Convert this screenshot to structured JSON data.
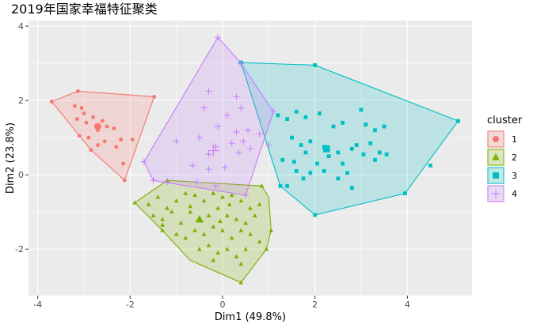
{
  "chart_data": {
    "type": "scatter",
    "title": "2019年国家幸福特征聚类",
    "xlabel": "Dim1 (49.8%)",
    "ylabel": "Dim2 (23.8%)",
    "xlim": [
      -4.2,
      5.4
    ],
    "ylim": [
      -3.25,
      4.15
    ],
    "xticks": [
      -4,
      -2,
      0,
      2,
      4
    ],
    "yticks": [
      -2,
      0,
      2,
      4
    ],
    "grid": true,
    "legend_title": "cluster",
    "legend_position": "right",
    "series": [
      {
        "name": "1",
        "color": "#F8766D",
        "marker": "circle",
        "centroid": [
          -2.7,
          1.3
        ],
        "hull": [
          [
            -3.7,
            1.97
          ],
          [
            -3.13,
            2.25
          ],
          [
            -1.48,
            2.1
          ],
          [
            -2.12,
            -0.15
          ],
          [
            -2.85,
            0.67
          ]
        ],
        "points": [
          [
            -3.7,
            1.97
          ],
          [
            -3.13,
            2.25
          ],
          [
            -1.48,
            2.1
          ],
          [
            -2.12,
            -0.15
          ],
          [
            -2.85,
            0.67
          ],
          [
            -3.2,
            1.85
          ],
          [
            -3.05,
            1.8
          ],
          [
            -3.0,
            1.65
          ],
          [
            -3.15,
            1.5
          ],
          [
            -2.95,
            1.4
          ],
          [
            -2.8,
            1.55
          ],
          [
            -2.7,
            1.2
          ],
          [
            -2.6,
            1.45
          ],
          [
            -2.5,
            1.3
          ],
          [
            -2.9,
            1.0
          ],
          [
            -3.1,
            1.05
          ],
          [
            -2.55,
            0.9
          ],
          [
            -2.35,
            1.25
          ],
          [
            -2.2,
            0.95
          ],
          [
            -2.3,
            0.75
          ],
          [
            -2.7,
            0.8
          ],
          [
            -2.15,
            0.3
          ],
          [
            -1.95,
            0.95
          ]
        ]
      },
      {
        "name": "2",
        "color": "#7CAE00",
        "marker": "triangle",
        "centroid": [
          -0.5,
          -1.2
        ],
        "hull": [
          [
            -1.2,
            -0.15
          ],
          [
            0.85,
            -0.3
          ],
          [
            1.0,
            -0.6
          ],
          [
            1.05,
            -1.5
          ],
          [
            0.95,
            -2.0
          ],
          [
            0.4,
            -2.9
          ],
          [
            -0.7,
            -2.3
          ],
          [
            -1.3,
            -1.5
          ],
          [
            -1.9,
            -0.75
          ]
        ],
        "points": [
          [
            -1.9,
            -0.75
          ],
          [
            -1.2,
            -0.15
          ],
          [
            0.85,
            -0.3
          ],
          [
            1.05,
            -1.5
          ],
          [
            0.95,
            -2.0
          ],
          [
            0.4,
            -2.9
          ],
          [
            -1.3,
            -1.5
          ],
          [
            -1.6,
            -0.8
          ],
          [
            -1.4,
            -0.6
          ],
          [
            -1.2,
            -0.9
          ],
          [
            -1.0,
            -0.7
          ],
          [
            -0.8,
            -0.5
          ],
          [
            -0.6,
            -0.55
          ],
          [
            -0.4,
            -0.7
          ],
          [
            -0.2,
            -0.5
          ],
          [
            0.0,
            -0.6
          ],
          [
            0.2,
            -0.55
          ],
          [
            0.4,
            -0.7
          ],
          [
            0.6,
            -0.9
          ],
          [
            0.8,
            -0.8
          ],
          [
            -1.5,
            -1.1
          ],
          [
            -1.3,
            -1.2
          ],
          [
            -1.1,
            -1.0
          ],
          [
            -0.9,
            -1.3
          ],
          [
            -0.7,
            -1.0
          ],
          [
            -0.5,
            -1.2
          ],
          [
            -0.3,
            -1.1
          ],
          [
            -0.1,
            -0.9
          ],
          [
            0.1,
            -1.1
          ],
          [
            0.3,
            -1.2
          ],
          [
            0.5,
            -1.3
          ],
          [
            0.7,
            -1.1
          ],
          [
            -1.0,
            -1.6
          ],
          [
            -0.8,
            -1.7
          ],
          [
            -0.6,
            -1.5
          ],
          [
            -0.4,
            -1.6
          ],
          [
            -0.2,
            -1.4
          ],
          [
            0.0,
            -1.5
          ],
          [
            0.2,
            -1.7
          ],
          [
            0.4,
            -1.5
          ],
          [
            0.6,
            -1.6
          ],
          [
            0.8,
            -1.8
          ],
          [
            -0.5,
            -2.0
          ],
          [
            -0.3,
            -1.9
          ],
          [
            -0.1,
            -2.1
          ],
          [
            0.1,
            -2.0
          ],
          [
            0.3,
            -2.2
          ],
          [
            0.5,
            -2.0
          ],
          [
            0.4,
            -2.4
          ],
          [
            -0.2,
            -2.3
          ],
          [
            -1.3,
            -1.35
          ],
          [
            -0.7,
            -0.85
          ],
          [
            -0.05,
            -1.25
          ],
          [
            0.15,
            -0.8
          ]
        ]
      },
      {
        "name": "3",
        "color": "#00BFC4",
        "marker": "square",
        "centroid": [
          2.25,
          0.7
        ],
        "hull": [
          [
            0.4,
            3.02
          ],
          [
            2.0,
            2.95
          ],
          [
            5.1,
            1.45
          ],
          [
            3.95,
            -0.5
          ],
          [
            2.0,
            -1.08
          ],
          [
            1.25,
            -0.3
          ]
        ],
        "points": [
          [
            0.4,
            3.02
          ],
          [
            2.0,
            2.95
          ],
          [
            5.1,
            1.45
          ],
          [
            3.95,
            -0.5
          ],
          [
            2.0,
            -1.08
          ],
          [
            1.25,
            -0.3
          ],
          [
            1.2,
            1.6
          ],
          [
            1.4,
            1.5
          ],
          [
            1.6,
            1.7
          ],
          [
            1.8,
            1.55
          ],
          [
            2.1,
            1.65
          ],
          [
            2.6,
            1.4
          ],
          [
            3.0,
            1.75
          ],
          [
            3.1,
            1.35
          ],
          [
            3.3,
            1.2
          ],
          [
            3.5,
            1.3
          ],
          [
            2.4,
            1.3
          ],
          [
            1.5,
            1.0
          ],
          [
            1.7,
            0.8
          ],
          [
            1.9,
            0.9
          ],
          [
            2.2,
            0.75
          ],
          [
            2.5,
            0.6
          ],
          [
            2.9,
            0.8
          ],
          [
            3.2,
            0.85
          ],
          [
            3.4,
            0.6
          ],
          [
            1.3,
            0.4
          ],
          [
            1.55,
            0.35
          ],
          [
            1.8,
            0.6
          ],
          [
            2.05,
            0.3
          ],
          [
            2.3,
            0.5
          ],
          [
            2.6,
            0.3
          ],
          [
            2.8,
            0.7
          ],
          [
            3.05,
            0.55
          ],
          [
            3.3,
            0.4
          ],
          [
            3.55,
            0.55
          ],
          [
            1.6,
            0.1
          ],
          [
            1.9,
            0.05
          ],
          [
            2.2,
            0.1
          ],
          [
            2.5,
            -0.1
          ],
          [
            2.8,
            -0.35
          ],
          [
            1.4,
            -0.3
          ],
          [
            1.75,
            -0.1
          ],
          [
            4.5,
            0.25
          ],
          [
            2.7,
            0.05
          ]
        ]
      },
      {
        "name": "4",
        "color": "#C77CFF",
        "marker": "plus",
        "centroid": [
          -0.2,
          0.65
        ],
        "hull": [
          [
            -0.1,
            3.7
          ],
          [
            0.4,
            3.0
          ],
          [
            1.1,
            1.7
          ],
          [
            0.5,
            -0.55
          ],
          [
            -1.5,
            -0.15
          ],
          [
            -1.7,
            0.35
          ]
        ],
        "points": [
          [
            -0.1,
            3.7
          ],
          [
            0.4,
            3.0
          ],
          [
            1.1,
            1.7
          ],
          [
            0.5,
            -0.55
          ],
          [
            -1.5,
            -0.15
          ],
          [
            -1.7,
            0.35
          ],
          [
            -0.3,
            2.25
          ],
          [
            0.3,
            2.1
          ],
          [
            -0.4,
            1.8
          ],
          [
            0.1,
            1.6
          ],
          [
            0.4,
            1.8
          ],
          [
            -0.1,
            1.3
          ],
          [
            0.3,
            1.15
          ],
          [
            0.55,
            1.2
          ],
          [
            -0.5,
            1.0
          ],
          [
            -0.15,
            0.75
          ],
          [
            0.2,
            0.85
          ],
          [
            0.45,
            0.9
          ],
          [
            0.6,
            0.7
          ],
          [
            0.8,
            1.1
          ],
          [
            1.0,
            0.8
          ],
          [
            -1.0,
            0.9
          ],
          [
            -0.65,
            0.25
          ],
          [
            -0.3,
            0.15
          ],
          [
            0.05,
            0.2
          ],
          [
            -0.55,
            -0.2
          ],
          [
            -0.15,
            -0.3
          ],
          [
            -1.2,
            -0.2
          ],
          [
            -0.3,
            0.55
          ],
          [
            0.35,
            0.6
          ]
        ]
      }
    ]
  }
}
